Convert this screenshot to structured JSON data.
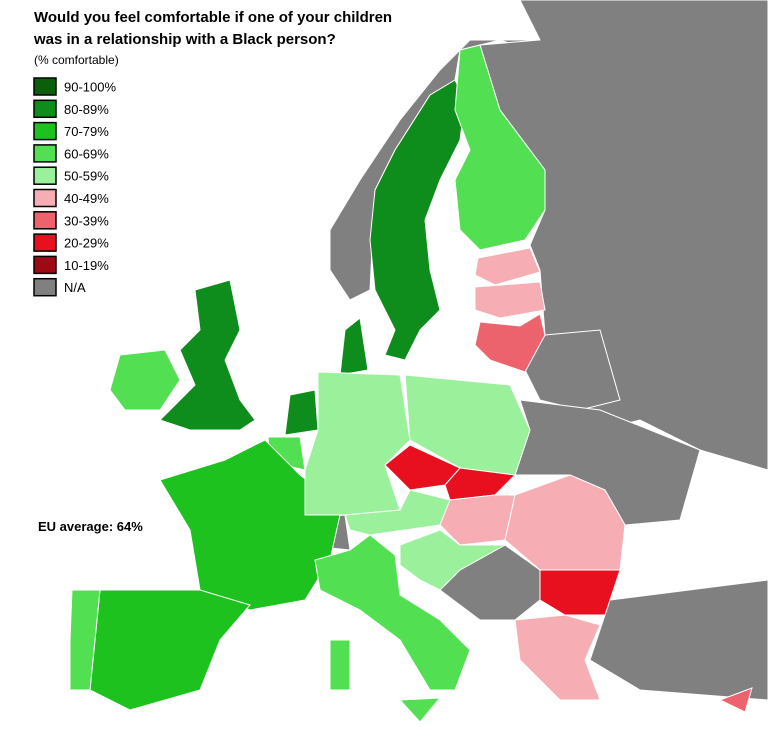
{
  "map_data": {
    "title": [
      "Would you feel comfortable if one of your children",
      "was in a relationship with a Black person?"
    ],
    "subtitle": "(% comfortable)",
    "legend": [
      {
        "label": "90-100%",
        "color": "#0b5e0b"
      },
      {
        "label": "80-89%",
        "color": "#0e8c1c"
      },
      {
        "label": "70-79%",
        "color": "#1ec21e"
      },
      {
        "label": "60-69%",
        "color": "#52e052"
      },
      {
        "label": "50-59%",
        "color": "#9bf09b"
      },
      {
        "label": "40-49%",
        "color": "#f6adb3"
      },
      {
        "label": "30-39%",
        "color": "#ec636d"
      },
      {
        "label": "20-29%",
        "color": "#e8101e"
      },
      {
        "label": "10-19%",
        "color": "#9e0a14"
      },
      {
        "label": "N/A",
        "color": "#808080"
      }
    ],
    "annotation": "EU average: 64%",
    "region_bins": [
      9,
      9,
      9,
      9,
      9,
      9,
      9,
      1,
      3,
      5,
      5,
      6,
      1,
      3,
      1,
      1,
      3,
      2,
      2,
      3,
      4,
      4,
      7,
      7,
      4,
      5,
      5,
      7,
      5,
      3,
      4,
      3,
      3,
      6
    ]
  }
}
